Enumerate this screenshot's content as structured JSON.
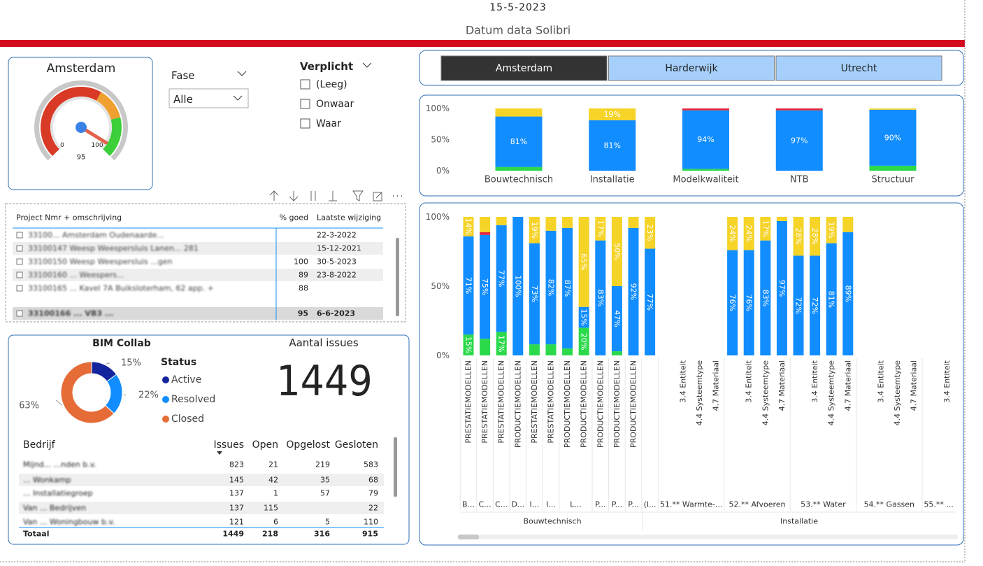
{
  "header": {
    "date": "15-5-2023",
    "caption": "Datum data Solibri"
  },
  "gauge": {
    "title": "Amsterdam",
    "value": 95,
    "min": 0,
    "max": 100,
    "zones": [
      {
        "to": 61,
        "color": "#d93a26"
      },
      {
        "to": 78,
        "color": "#f0a030"
      },
      {
        "to": 100,
        "color": "#3ccf3a"
      }
    ]
  },
  "slicers": {
    "fase": {
      "title": "Fase",
      "selected": "Alle"
    },
    "verplicht": {
      "title": "Verplicht",
      "options": [
        "(Leeg)",
        "Onwaar",
        "Waar"
      ]
    }
  },
  "project_table": {
    "columns": [
      "Project Nmr + omschrijving",
      "% goed",
      "Laatste wijziging"
    ],
    "rows": [
      [
        "33100... Amsterdam Oudenaarde...",
        null,
        "22-3-2022"
      ],
      [
        "33100147 Weesp Weespersluis Lanen... 281",
        null,
        "15-12-2021"
      ],
      [
        "33100150 Weesp Weespersluis ...gen",
        100,
        "30-5-2023"
      ],
      [
        "33100160 ... Weespers...",
        89,
        "23-8-2022"
      ],
      [
        "33100165 ... Kavel 7A Buiksloterham, 62 app. +",
        88,
        null
      ],
      [
        "33100166 ... VB3 ...",
        95,
        "6-6-2023"
      ]
    ]
  },
  "bim_collab": {
    "title": "BIM Collab"
  },
  "issues_card": {
    "title": "Aantal issues",
    "value": 1449
  },
  "issues_table": {
    "columns": [
      "Bedrijf",
      "Issues",
      "Open",
      "Opgelost",
      "Gesloten"
    ],
    "rows": [
      [
        "Mijnd... ...nden b.v.",
        823,
        21,
        219,
        583
      ],
      [
        "... Wonkamp",
        145,
        42,
        35,
        68
      ],
      [
        "... Installatiegroep",
        137,
        1,
        57,
        79
      ],
      [
        "Van ... Bedrijven",
        137,
        115,
        null,
        22
      ],
      [
        "Van ... Woningbouw b.v.",
        121,
        6,
        5,
        110
      ]
    ],
    "total": [
      "Totaal",
      1449,
      218,
      316,
      915
    ]
  },
  "city_buttons": {
    "labels": [
      "Amsterdam",
      "Harderwijk",
      "Utrecht"
    ],
    "selected": 0
  },
  "chart_data": [
    {
      "type": "pie",
      "legend_title": "Status",
      "categories": [
        "Active",
        "Resolved",
        "Closed"
      ],
      "values": [
        15,
        22,
        63
      ],
      "value_labels": [
        "15%",
        "22%",
        "63%"
      ],
      "colors": [
        "#14249c",
        "#118dff",
        "#e66c37"
      ],
      "donut": true
    },
    {
      "type": "bar",
      "stacked": true,
      "categories": [
        "Bouwtechnisch",
        "Installatie",
        "Modelkwaliteit",
        "NTB",
        "Structuur"
      ],
      "ylim": [
        0,
        100
      ],
      "yticks": [
        {
          "value": 0,
          "label": "0%"
        },
        {
          "value": 50,
          "label": "50%"
        },
        {
          "value": 100,
          "label": "100%"
        }
      ],
      "series": [
        {
          "color": "#2bd94a",
          "values": [
            6,
            0,
            3,
            0,
            8
          ]
        },
        {
          "color": "#118dff",
          "values": [
            81,
            81,
            94,
            97,
            90
          ],
          "value_labels": [
            "81%",
            "81%",
            "94%",
            "97%",
            "90%"
          ]
        },
        {
          "color": "#e2263b",
          "values": [
            0,
            0,
            3,
            3,
            0
          ]
        },
        {
          "color": "#f5d327",
          "values": [
            13,
            19,
            0,
            0,
            2
          ],
          "value_labels": [
            null,
            "19%",
            null,
            null,
            null
          ]
        }
      ]
    },
    {
      "type": "bar",
      "stacked": true,
      "categories": [
        "PRESTATIEMODELLEN",
        "PRESTATIEMODELLEN",
        "PRESTATIEMODELLEN",
        "PRODUCTIEMODELLEN",
        "PRESTATIEMODELLEN",
        "PRESTATIEMODELLEN",
        "PRODUCTIEMODELLEN",
        "PRODUCTIEMODELLEN",
        "PRODUCTIEMODELLEN",
        "PRODUCTIEMODELLEN",
        "PRODUCTIEMODELLEN",
        null,
        null,
        "3.4 Entiteit",
        "4.4 Systeemtype",
        "4.7 Materiaal",
        null,
        "3.4 Entiteit",
        "4.4 Systeemtype",
        "4.7 Materiaal",
        null,
        "3.4 Entiteit",
        "4.4 Systeemtype",
        "4.7 Materiaal",
        null,
        "3.4 Entiteit",
        "4.4 Systeemtype",
        "4.7 Materiaal",
        null,
        "3.4 Entiteit"
      ],
      "category_level2": [
        "B...",
        "C...",
        "C...",
        "D...",
        "I...",
        "I...",
        "L...",
        "P...",
        "P...",
        "P...",
        "(l...",
        "51.** Warmte-...",
        "52.** Afvoeren",
        "53.** Water",
        "54.** Gassen",
        "55.** ..."
      ],
      "category_level3": [
        "Bouwtechnisch",
        "Installatie"
      ],
      "ylim": [
        0,
        100
      ],
      "yticks": [
        {
          "value": 0,
          "label": "0%"
        },
        {
          "value": 50,
          "label": "50%"
        },
        {
          "value": 100,
          "label": "100%"
        }
      ],
      "series": [
        {
          "color": "#2bd94a",
          "values": [
            15,
            12,
            17,
            0,
            8,
            8,
            5,
            20,
            0,
            3,
            0,
            0,
            null,
            null,
            null,
            null,
            0,
            0,
            0,
            0,
            0,
            0,
            0,
            0,
            null,
            null,
            null,
            null,
            null,
            null
          ],
          "value_labels": [
            "15%",
            null,
            "17%",
            null,
            null,
            null,
            null,
            "20%",
            null,
            null,
            null,
            null,
            null,
            null,
            null,
            null,
            null,
            null,
            null,
            null,
            null,
            null,
            null,
            null,
            null,
            null,
            null,
            null,
            null,
            null
          ]
        },
        {
          "color": "#118dff",
          "values": [
            71,
            75,
            77,
            100,
            73,
            82,
            87,
            15,
            83,
            47,
            92,
            77,
            null,
            null,
            null,
            null,
            76,
            76,
            83,
            97,
            72,
            72,
            81,
            89,
            null,
            null,
            null,
            null,
            null,
            null
          ],
          "value_labels": [
            "71%",
            "75%",
            "77%",
            "100%",
            "73%",
            "82%",
            "87%",
            "15%",
            "83%",
            "47%",
            "92%",
            "77%",
            null,
            null,
            null,
            null,
            "76%",
            "76%",
            "83%",
            "97%",
            "72%",
            "72%",
            "81%",
            "89%",
            null,
            null,
            null,
            null,
            null,
            null
          ]
        },
        {
          "color": "#e2263b",
          "values": [
            0,
            2,
            0,
            0,
            0,
            0,
            0,
            0,
            0,
            0,
            0,
            0,
            null,
            null,
            null,
            null,
            0,
            0,
            0,
            0,
            0,
            0,
            0,
            0,
            null,
            null,
            null,
            null,
            null,
            null
          ]
        },
        {
          "color": "#f5d327",
          "values": [
            14,
            11,
            6,
            0,
            19,
            10,
            8,
            65,
            17,
            50,
            8,
            23,
            null,
            null,
            null,
            null,
            24,
            24,
            17,
            3,
            28,
            28,
            19,
            11,
            null,
            null,
            null,
            null,
            null,
            null
          ],
          "value_labels": [
            "14%",
            null,
            null,
            null,
            "19%",
            null,
            null,
            "65%",
            "17%",
            "50%",
            null,
            "23%",
            null,
            null,
            null,
            null,
            "24%",
            "24%",
            "17%",
            null,
            "28%",
            "28%",
            "19%",
            null,
            null,
            null,
            null,
            null,
            null,
            null
          ]
        }
      ]
    }
  ]
}
